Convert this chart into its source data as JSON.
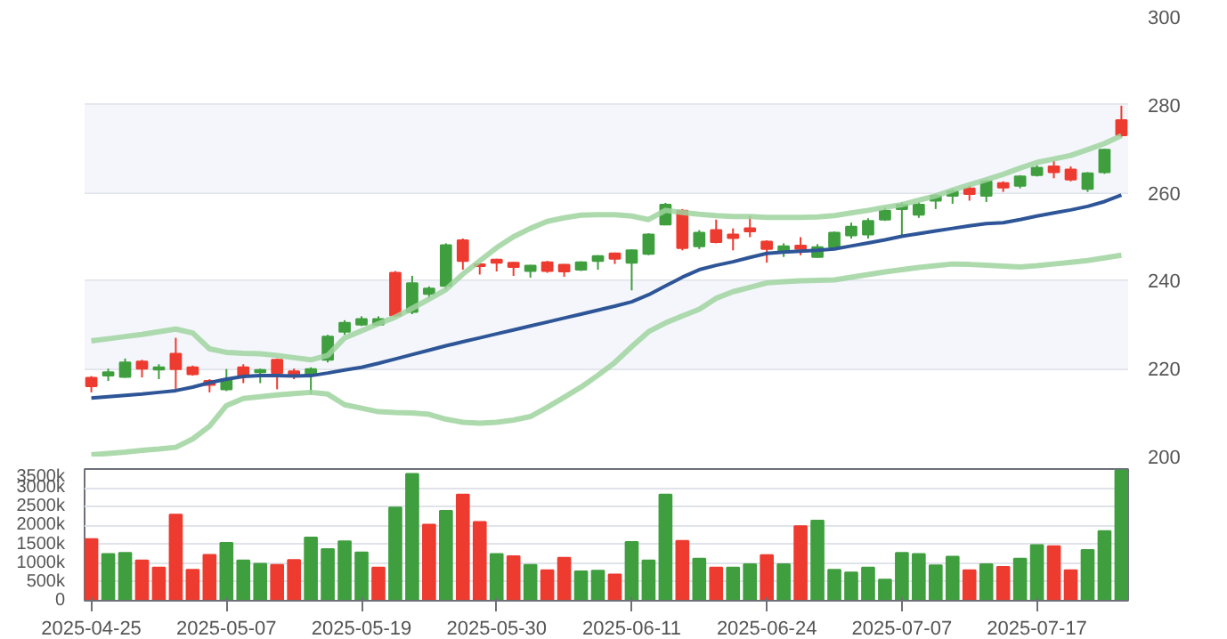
{
  "chart_data": [
    {
      "type": "candlestick",
      "categories": [
        "2025-04-25",
        null,
        null,
        null,
        null,
        null,
        null,
        null,
        "2025-05-07",
        null,
        null,
        null,
        null,
        null,
        null,
        null,
        "2025-05-19",
        null,
        null,
        null,
        null,
        null,
        null,
        null,
        "2025-05-30",
        null,
        null,
        null,
        null,
        null,
        null,
        null,
        "2025-06-11",
        null,
        null,
        null,
        null,
        null,
        null,
        null,
        "2025-06-24",
        null,
        null,
        null,
        null,
        null,
        null,
        null,
        "2025-07-07",
        null,
        null,
        null,
        null,
        null,
        null,
        null,
        "2025-07-17",
        null,
        null,
        null,
        null,
        null
      ],
      "ohlc": [
        [
          217.9,
          218.3,
          214.6,
          216.0
        ],
        [
          218.4,
          220.0,
          217.2,
          219.2
        ],
        [
          218.1,
          222.3,
          217.9,
          221.4
        ],
        [
          221.6,
          222.0,
          218.0,
          220.0
        ],
        [
          219.8,
          221.0,
          217.6,
          220.3
        ],
        [
          223.4,
          227.0,
          214.9,
          219.9
        ],
        [
          220.3,
          220.7,
          218.4,
          218.7
        ],
        [
          217.2,
          217.6,
          214.6,
          216.3
        ],
        [
          215.3,
          219.9,
          214.9,
          217.6
        ],
        [
          220.3,
          221.0,
          216.7,
          218.5
        ],
        [
          219.2,
          220.0,
          216.7,
          219.7
        ],
        [
          222.0,
          222.3,
          215.3,
          219.0
        ],
        [
          219.4,
          220.0,
          217.6,
          218.7
        ],
        [
          218.5,
          220.3,
          214.2,
          219.9
        ],
        [
          222.0,
          227.7,
          221.4,
          227.3
        ],
        [
          228.4,
          231.0,
          227.7,
          230.4
        ],
        [
          230.0,
          231.9,
          229.7,
          231.3
        ],
        [
          230.0,
          231.9,
          229.7,
          231.3
        ],
        [
          241.8,
          242.2,
          231.7,
          232.1
        ],
        [
          232.9,
          241.1,
          232.4,
          239.4
        ],
        [
          237.0,
          238.7,
          236.0,
          238.2
        ],
        [
          238.8,
          248.5,
          238.0,
          248.1
        ],
        [
          249.2,
          249.6,
          242.5,
          244.5
        ],
        [
          243.7,
          243.9,
          241.4,
          243.3
        ],
        [
          244.8,
          245.0,
          242.1,
          244.1
        ],
        [
          244.1,
          244.3,
          241.1,
          243.1
        ],
        [
          242.2,
          243.6,
          240.7,
          243.4
        ],
        [
          244.2,
          244.5,
          241.8,
          242.2
        ],
        [
          243.6,
          243.8,
          240.9,
          242.1
        ],
        [
          242.5,
          244.4,
          242.2,
          244.2
        ],
        [
          244.5,
          245.8,
          242.5,
          245.6
        ],
        [
          246.2,
          246.4,
          243.8,
          245.0
        ],
        [
          244.1,
          247.1,
          237.8,
          246.9
        ],
        [
          246.1,
          250.8,
          245.8,
          250.5
        ],
        [
          252.8,
          257.7,
          252.6,
          257.3
        ],
        [
          255.9,
          256.3,
          246.9,
          247.4
        ],
        [
          247.8,
          251.5,
          247.2,
          250.9
        ],
        [
          251.5,
          253.9,
          248.5,
          248.8
        ],
        [
          250.5,
          251.9,
          246.9,
          249.7
        ],
        [
          251.9,
          254.8,
          249.9,
          251.2
        ],
        [
          248.9,
          249.2,
          244.1,
          247.2
        ],
        [
          246.5,
          248.5,
          245.4,
          247.8
        ],
        [
          248.0,
          249.9,
          245.8,
          247.2
        ],
        [
          245.4,
          248.3,
          245.2,
          247.6
        ],
        [
          247.6,
          251.2,
          247.2,
          250.9
        ],
        [
          250.3,
          253.2,
          249.6,
          252.3
        ],
        [
          250.5,
          254.2,
          249.6,
          253.6
        ],
        [
          253.9,
          256.6,
          253.6,
          255.9
        ],
        [
          256.3,
          257.9,
          250.1,
          257.3
        ],
        [
          255.0,
          257.9,
          254.3,
          257.3
        ],
        [
          258.2,
          259.7,
          256.3,
          259.3
        ],
        [
          259.3,
          260.9,
          257.5,
          260.3
        ],
        [
          261.0,
          261.6,
          258.2,
          259.7
        ],
        [
          259.3,
          263.0,
          257.9,
          262.6
        ],
        [
          262.2,
          262.6,
          260.2,
          261.2
        ],
        [
          261.6,
          264.0,
          261.0,
          263.7
        ],
        [
          264.0,
          266.3,
          263.7,
          265.7
        ],
        [
          266.0,
          267.3,
          263.3,
          264.7
        ],
        [
          265.3,
          266.0,
          262.6,
          263.0
        ],
        [
          260.9,
          264.7,
          260.2,
          264.4
        ],
        [
          264.7,
          270.0,
          264.3,
          269.8
        ],
        [
          276.5,
          279.8,
          272.7,
          273.1
        ]
      ],
      "colors": [
        "#ee3b2f",
        "#3f9f3f",
        "#3f9f3f",
        "#ee3b2f",
        "#3f9f3f",
        "#ee3b2f",
        "#ee3b2f",
        "#ee3b2f",
        "#3f9f3f",
        "#ee3b2f",
        "#3f9f3f",
        "#ee3b2f",
        "#ee3b2f",
        "#3f9f3f",
        "#3f9f3f",
        "#3f9f3f",
        "#3f9f3f",
        "#3f9f3f",
        "#ee3b2f",
        "#3f9f3f",
        "#3f9f3f",
        "#3f9f3f",
        "#ee3b2f",
        "#ee3b2f",
        "#ee3b2f",
        "#ee3b2f",
        "#3f9f3f",
        "#ee3b2f",
        "#ee3b2f",
        "#3f9f3f",
        "#3f9f3f",
        "#ee3b2f",
        "#3f9f3f",
        "#3f9f3f",
        "#3f9f3f",
        "#ee3b2f",
        "#3f9f3f",
        "#ee3b2f",
        "#ee3b2f",
        "#ee3b2f",
        "#ee3b2f",
        "#3f9f3f",
        "#ee3b2f",
        "#3f9f3f",
        "#3f9f3f",
        "#3f9f3f",
        "#3f9f3f",
        "#3f9f3f",
        "#3f9f3f",
        "#3f9f3f",
        "#3f9f3f",
        "#3f9f3f",
        "#ee3b2f",
        "#3f9f3f",
        "#ee3b2f",
        "#3f9f3f",
        "#3f9f3f",
        "#ee3b2f",
        "#ee3b2f",
        "#3f9f3f",
        "#3f9f3f",
        "#ee3b2f"
      ],
      "series": [
        {
          "type": "line",
          "color": "#2d5597",
          "values": [
            213.3,
            213.6,
            213.9,
            214.2,
            214.6,
            215.0,
            215.8,
            216.8,
            217.6,
            218.2,
            218.4,
            218.4,
            218.3,
            218.4,
            219.0,
            219.7,
            220.3,
            221.2,
            222.2,
            223.2,
            224.2,
            225.2,
            226.1,
            227.0,
            227.9,
            228.8,
            229.7,
            230.6,
            231.5,
            232.4,
            233.3,
            234.2,
            235.2,
            236.8,
            238.8,
            240.8,
            242.5,
            243.5,
            244.3,
            245.3,
            246.2,
            246.5,
            246.7,
            246.9,
            247.2,
            247.9,
            248.6,
            249.3,
            250.1,
            250.7,
            251.3,
            251.9,
            252.5,
            253.0,
            253.2,
            253.9,
            254.7,
            255.4,
            256.1,
            256.9,
            258.0,
            259.5
          ]
        },
        {
          "type": "line",
          "color": "#9fd49f",
          "values": [
            226.3,
            226.8,
            227.3,
            227.8,
            228.4,
            229.0,
            228.1,
            224.5,
            223.7,
            223.5,
            223.4,
            223.0,
            222.5,
            222.0,
            223.0,
            227.0,
            228.6,
            230.2,
            231.7,
            233.7,
            235.8,
            238.0,
            241.5,
            244.5,
            247.5,
            250.0,
            251.9,
            253.5,
            254.3,
            254.9,
            255.0,
            255.0,
            254.7,
            253.9,
            256.0,
            255.5,
            255.1,
            254.8,
            254.6,
            254.6,
            254.4,
            254.4,
            254.4,
            254.5,
            254.8,
            255.4,
            256.0,
            256.7,
            257.3,
            258.3,
            259.3,
            260.6,
            261.8,
            263.0,
            264.2,
            265.6,
            266.9,
            267.7,
            268.5,
            269.8,
            271.2,
            273.0
          ]
        },
        {
          "type": "line",
          "color": "#9fd49f",
          "values": [
            200.4,
            200.7,
            201.0,
            201.4,
            201.7,
            202.1,
            204.0,
            206.9,
            211.6,
            213.2,
            213.6,
            214.0,
            214.3,
            214.6,
            214.2,
            211.8,
            211.0,
            210.2,
            210.0,
            209.9,
            209.6,
            208.5,
            207.8,
            207.6,
            207.8,
            208.3,
            209.1,
            211.2,
            213.5,
            215.8,
            218.5,
            221.4,
            225.0,
            228.4,
            230.4,
            232.0,
            233.5,
            236.0,
            237.5,
            238.5,
            239.5,
            239.8,
            240.0,
            240.1,
            240.2,
            240.8,
            241.4,
            242.0,
            242.5,
            243.0,
            243.4,
            243.8,
            243.7,
            243.5,
            243.3,
            243.1,
            243.4,
            243.8,
            244.2,
            244.6,
            245.2,
            245.8
          ]
        }
      ],
      "ylim": [
        200,
        300
      ],
      "yticks": [
        200,
        220,
        240,
        260,
        280,
        300
      ],
      "grid": "y",
      "tick_labels": "y",
      "bands": [
        {
          "axis": "y",
          "from": 220,
          "to": 240,
          "color": "#f4f6fb"
        },
        {
          "axis": "y",
          "from": 260,
          "to": 280,
          "color": "#f4f6fb"
        }
      ]
    },
    {
      "type": "bar",
      "categories": [
        "2025-04-25",
        null,
        null,
        null,
        null,
        null,
        null,
        null,
        "2025-05-07",
        null,
        null,
        null,
        null,
        null,
        null,
        null,
        "2025-05-19",
        null,
        null,
        null,
        null,
        null,
        null,
        null,
        "2025-05-30",
        null,
        null,
        null,
        null,
        null,
        null,
        null,
        "2025-06-11",
        null,
        null,
        null,
        null,
        null,
        null,
        null,
        "2025-06-24",
        null,
        null,
        null,
        null,
        null,
        null,
        null,
        "2025-07-07",
        null,
        null,
        null,
        null,
        null,
        null,
        null,
        "2025-07-17",
        null,
        null,
        null,
        null,
        null
      ],
      "values": [
        1640000,
        1240000,
        1270000,
        1070000,
        880000,
        2290000,
        820000,
        1220000,
        1540000,
        1070000,
        980000,
        950000,
        1080000,
        1680000,
        1370000,
        1580000,
        1280000,
        880000,
        2480000,
        3370000,
        2020000,
        2390000,
        2820000,
        2090000,
        1240000,
        1180000,
        950000,
        810000,
        1140000,
        780000,
        800000,
        700000,
        1560000,
        1070000,
        2820000,
        1590000,
        1120000,
        880000,
        880000,
        970000,
        1210000,
        970000,
        1980000,
        2130000,
        820000,
        750000,
        880000,
        560000,
        1270000,
        1240000,
        940000,
        1170000,
        810000,
        970000,
        900000,
        1120000,
        1480000,
        1450000,
        810000,
        1350000,
        1850000,
        3460000
      ],
      "colors": [
        "#ee3b2f",
        "#3f9f3f",
        "#3f9f3f",
        "#ee3b2f",
        "#ee3b2f",
        "#ee3b2f",
        "#ee3b2f",
        "#ee3b2f",
        "#3f9f3f",
        "#3f9f3f",
        "#3f9f3f",
        "#ee3b2f",
        "#ee3b2f",
        "#3f9f3f",
        "#3f9f3f",
        "#3f9f3f",
        "#3f9f3f",
        "#ee3b2f",
        "#3f9f3f",
        "#3f9f3f",
        "#ee3b2f",
        "#3f9f3f",
        "#ee3b2f",
        "#ee3b2f",
        "#3f9f3f",
        "#ee3b2f",
        "#3f9f3f",
        "#ee3b2f",
        "#ee3b2f",
        "#3f9f3f",
        "#3f9f3f",
        "#ee3b2f",
        "#3f9f3f",
        "#3f9f3f",
        "#3f9f3f",
        "#ee3b2f",
        "#3f9f3f",
        "#ee3b2f",
        "#3f9f3f",
        "#3f9f3f",
        "#ee3b2f",
        "#3f9f3f",
        "#ee3b2f",
        "#3f9f3f",
        "#3f9f3f",
        "#3f9f3f",
        "#3f9f3f",
        "#3f9f3f",
        "#3f9f3f",
        "#3f9f3f",
        "#3f9f3f",
        "#3f9f3f",
        "#ee3b2f",
        "#3f9f3f",
        "#ee3b2f",
        "#3f9f3f",
        "#3f9f3f",
        "#ee3b2f",
        "#ee3b2f",
        "#3f9f3f",
        "#3f9f3f",
        "#3f9f3f"
      ],
      "ylim": [
        0,
        3500000
      ],
      "yticks": [
        {
          "value": 0,
          "label": "0"
        },
        {
          "value": 500000,
          "label": "500k"
        },
        {
          "value": 1000000,
          "label": "1000k"
        },
        {
          "value": 1500000,
          "label": "1500k"
        },
        {
          "value": 2000000,
          "label": "2000k"
        },
        {
          "value": 2500000,
          "label": "2500k"
        },
        {
          "value": 3000000,
          "label": "3000k"
        },
        {
          "value": 3500000,
          "label": "3500k"
        }
      ],
      "grid": "y"
    }
  ]
}
